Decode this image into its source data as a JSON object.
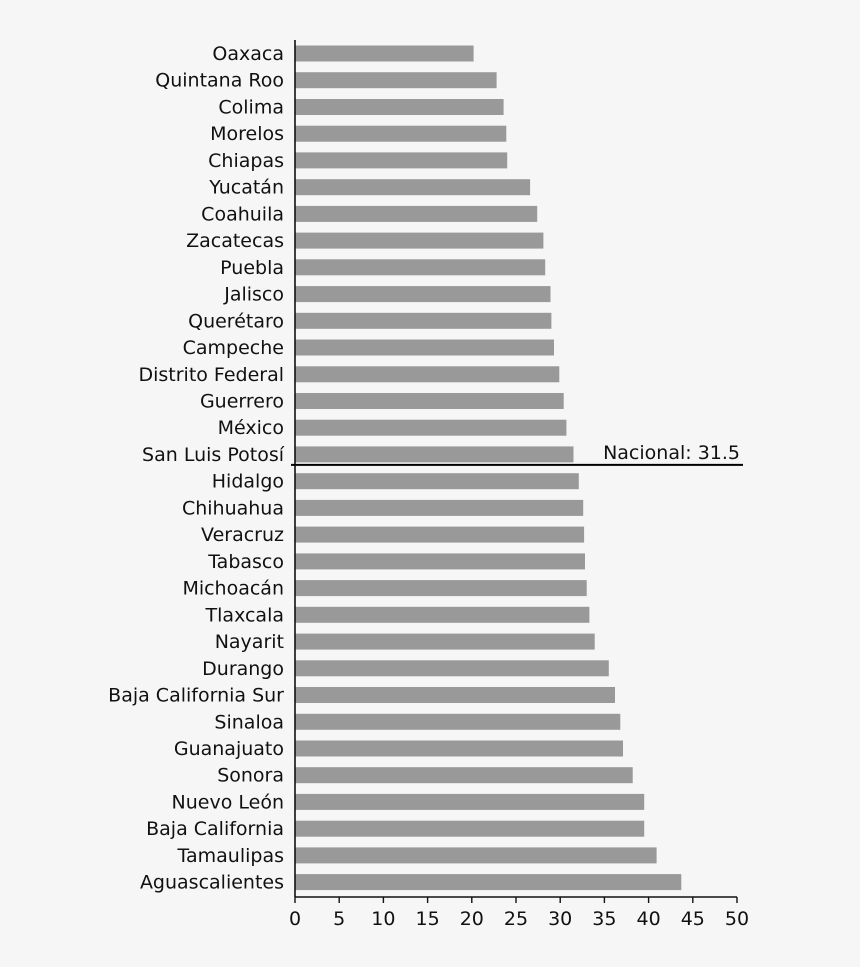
{
  "chart_data": {
    "type": "bar",
    "orientation": "horizontal",
    "categories": [
      "Oaxaca",
      "Quintana Roo",
      "Colima",
      "Morelos",
      "Chiapas",
      "Yucatán",
      "Coahuila",
      "Zacatecas",
      "Puebla",
      "Jalisco",
      "Querétaro",
      "Campeche",
      "Distrito Federal",
      "Guerrero",
      "México",
      "San Luis Potosí",
      "Hidalgo",
      "Chihuahua",
      "Veracruz",
      "Tabasco",
      "Michoacán",
      "Tlaxcala",
      "Nayarit",
      "Durango",
      "Baja California Sur",
      "Sinaloa",
      "Guanajuato",
      "Sonora",
      "Nuevo León",
      "Baja California",
      "Tamaulipas",
      "Aguascalientes"
    ],
    "values": [
      20.2,
      22.8,
      23.6,
      23.9,
      24.0,
      26.6,
      27.4,
      28.1,
      28.3,
      28.9,
      29.0,
      29.3,
      29.9,
      30.4,
      30.7,
      31.5,
      32.1,
      32.6,
      32.7,
      32.8,
      33.0,
      33.3,
      33.9,
      35.5,
      36.2,
      36.8,
      37.1,
      38.2,
      39.5,
      39.5,
      40.9,
      43.7
    ],
    "xlim": [
      0,
      50
    ],
    "xticks": [
      0,
      5,
      10,
      15,
      20,
      25,
      30,
      35,
      40,
      45,
      50
    ],
    "reference_line": {
      "label": "Nacional: 31.5",
      "value": 31.5,
      "after_category": "San Luis Potosí"
    },
    "bar_color": "#999999",
    "title": "",
    "xlabel": "",
    "ylabel": ""
  }
}
